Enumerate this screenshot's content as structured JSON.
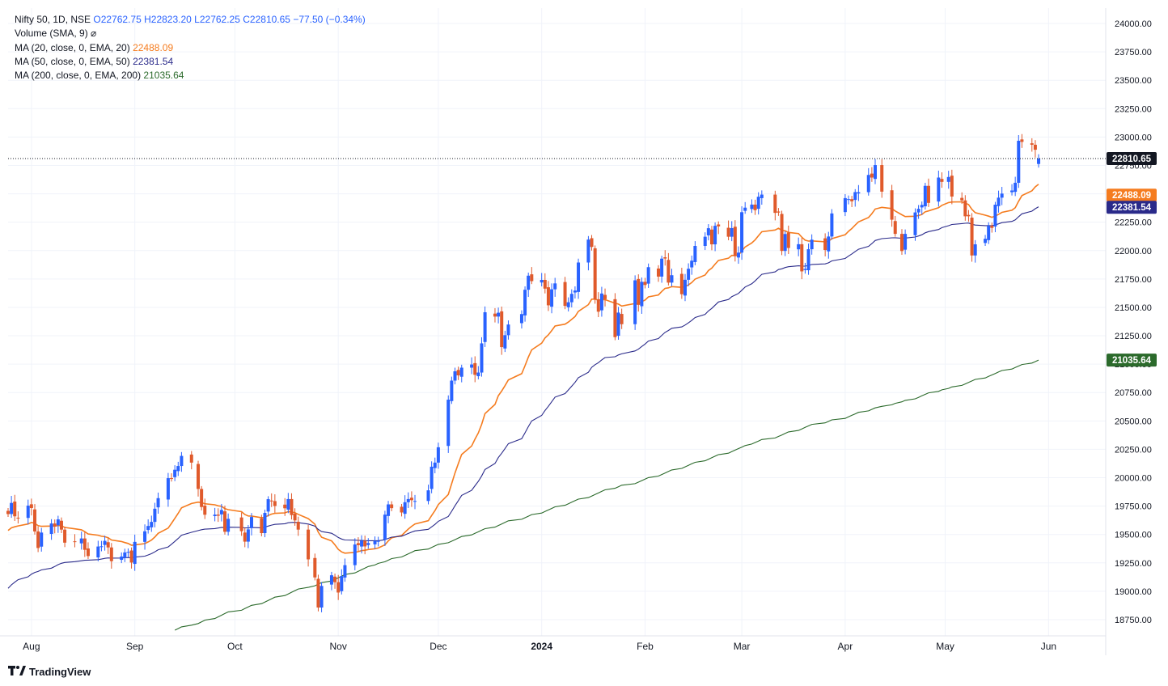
{
  "header": {
    "symbol_line": "Nifty 50, 1D, NSE",
    "open": "O22762.75",
    "high": "H22823.20",
    "low": "L22762.25",
    "close": "C22810.65",
    "change": "−77.50 (−0.34%)",
    "volume_label": "Volume (SMA, 9)",
    "volume_hidden_icon": "⌀",
    "ma20_label": "MA (20, close, 0, EMA, 20)",
    "ma20_value": "22488.09",
    "ma50_label": "MA (50, close, 0, EMA, 50)",
    "ma50_value": "22381.54",
    "ma200_label": "MA (200, close, 0, EMA, 200)",
    "ma200_value": "21035.64"
  },
  "brand": {
    "logo_icon": "tradingview-logo-icon",
    "name": "TradingView"
  },
  "colors": {
    "up": "#2962ff",
    "down": "#e05a2b",
    "ma20": "#f57c1f",
    "ma50": "#2a2a8a",
    "ma200": "#2b6a2b",
    "grid": "#f0f3fa",
    "last_price_bg": "#131722"
  },
  "chart_data": {
    "type": "candlestick",
    "ylim": [
      18650,
      24100
    ],
    "y_ticks": [
      "24000.00",
      "23750.00",
      "23500.00",
      "23250.00",
      "23000.00",
      "22750.00",
      "22500.00",
      "22250.00",
      "22000.00",
      "21750.00",
      "21500.00",
      "21250.00",
      "21000.00",
      "20750.00",
      "20500.00",
      "20250.00",
      "20000.00",
      "19750.00",
      "19500.00",
      "19250.00",
      "19000.00",
      "18750.00"
    ],
    "x_ticks": [
      {
        "label": "Aug",
        "date": "2023-08-01",
        "bold": false
      },
      {
        "label": "Sep",
        "date": "2023-09-01",
        "bold": false
      },
      {
        "label": "Oct",
        "date": "2023-10-01",
        "bold": false
      },
      {
        "label": "Nov",
        "date": "2023-11-01",
        "bold": false
      },
      {
        "label": "Dec",
        "date": "2023-12-01",
        "bold": false
      },
      {
        "label": "2024",
        "date": "2024-01-01",
        "bold": true
      },
      {
        "label": "Feb",
        "date": "2024-02-01",
        "bold": false
      },
      {
        "label": "Mar",
        "date": "2024-03-01",
        "bold": false
      },
      {
        "label": "Apr",
        "date": "2024-04-01",
        "bold": false
      },
      {
        "label": "May",
        "date": "2024-05-01",
        "bold": false
      },
      {
        "label": "Jun",
        "date": "2024-06-01",
        "bold": false
      }
    ],
    "x_range": [
      "2023-07-25",
      "2024-06-14"
    ],
    "last_price": 22810.65,
    "price_labels": [
      {
        "label": "22810.65",
        "value": 22810.65,
        "color": "#131722"
      },
      {
        "label": "22488.09",
        "value": 22488.09,
        "color": "#f57c1f"
      },
      {
        "label": "22381.54",
        "value": 22381.54,
        "color": "#2a2a8a"
      },
      {
        "label": "21035.64",
        "value": 21035.64,
        "color": "#2b6a2b"
      }
    ],
    "closes": [
      [
        "2023-07-25",
        19680
      ],
      [
        "2023-07-26",
        19778
      ],
      [
        "2023-07-27",
        19660
      ],
      [
        "2023-07-28",
        19646
      ],
      [
        "2023-07-31",
        19754
      ],
      [
        "2023-08-01",
        19733
      ],
      [
        "2023-08-02",
        19527
      ],
      [
        "2023-08-03",
        19381
      ],
      [
        "2023-08-04",
        19517
      ],
      [
        "2023-08-07",
        19597
      ],
      [
        "2023-08-08",
        19570
      ],
      [
        "2023-08-09",
        19633
      ],
      [
        "2023-08-10",
        19543
      ],
      [
        "2023-08-11",
        19428
      ],
      [
        "2023-08-14",
        19434
      ],
      [
        "2023-08-16",
        19465
      ],
      [
        "2023-08-17",
        19365
      ],
      [
        "2023-08-18",
        19310
      ],
      [
        "2023-08-21",
        19394
      ],
      [
        "2023-08-22",
        19396
      ],
      [
        "2023-08-23",
        19444
      ],
      [
        "2023-08-24",
        19386
      ],
      [
        "2023-08-25",
        19265
      ],
      [
        "2023-08-28",
        19306
      ],
      [
        "2023-08-29",
        19342
      ],
      [
        "2023-08-30",
        19347
      ],
      [
        "2023-08-31",
        19253
      ],
      [
        "2023-09-01",
        19435
      ],
      [
        "2023-09-04",
        19528
      ],
      [
        "2023-09-05",
        19575
      ],
      [
        "2023-09-06",
        19611
      ],
      [
        "2023-09-07",
        19727
      ],
      [
        "2023-09-08",
        19820
      ],
      [
        "2023-09-11",
        19996
      ],
      [
        "2023-09-12",
        19993
      ],
      [
        "2023-09-13",
        20070
      ],
      [
        "2023-09-14",
        20103
      ],
      [
        "2023-09-15",
        20192
      ],
      [
        "2023-09-18",
        20133
      ],
      [
        "2023-09-20",
        19901
      ],
      [
        "2023-09-21",
        19742
      ],
      [
        "2023-09-22",
        19674
      ],
      [
        "2023-09-25",
        19675
      ],
      [
        "2023-09-26",
        19665
      ],
      [
        "2023-09-27",
        19716
      ],
      [
        "2023-09-28",
        19524
      ],
      [
        "2023-09-29",
        19638
      ],
      [
        "2023-10-03",
        19529
      ],
      [
        "2023-10-04",
        19437
      ],
      [
        "2023-10-05",
        19545
      ],
      [
        "2023-10-06",
        19654
      ],
      [
        "2023-10-09",
        19512
      ],
      [
        "2023-10-10",
        19690
      ],
      [
        "2023-10-11",
        19811
      ],
      [
        "2023-10-12",
        19794
      ],
      [
        "2023-10-13",
        19751
      ],
      [
        "2023-10-16",
        19731
      ],
      [
        "2023-10-17",
        19812
      ],
      [
        "2023-10-18",
        19671
      ],
      [
        "2023-10-19",
        19624
      ],
      [
        "2023-10-20",
        19543
      ],
      [
        "2023-10-23",
        19281
      ],
      [
        "2023-10-25",
        19122
      ],
      [
        "2023-10-26",
        18857
      ],
      [
        "2023-10-27",
        19047
      ],
      [
        "2023-10-30",
        19141
      ],
      [
        "2023-10-31",
        19080
      ],
      [
        "2023-11-01",
        18989
      ],
      [
        "2023-11-02",
        19133
      ],
      [
        "2023-11-03",
        19230
      ],
      [
        "2023-11-06",
        19412
      ],
      [
        "2023-11-07",
        19406
      ],
      [
        "2023-11-08",
        19444
      ],
      [
        "2023-11-09",
        19395
      ],
      [
        "2023-11-10",
        19425
      ],
      [
        "2023-11-12",
        19443
      ],
      [
        "2023-11-13",
        19443
      ],
      [
        "2023-11-15",
        19675
      ],
      [
        "2023-11-16",
        19765
      ],
      [
        "2023-11-17",
        19732
      ],
      [
        "2023-11-20",
        19694
      ],
      [
        "2023-11-21",
        19784
      ],
      [
        "2023-11-22",
        19812
      ],
      [
        "2023-11-23",
        19802
      ],
      [
        "2023-11-24",
        19795
      ],
      [
        "2023-11-28",
        19889
      ],
      [
        "2023-11-29",
        20097
      ],
      [
        "2023-11-30",
        20133
      ],
      [
        "2023-12-01",
        20268
      ],
      [
        "2023-12-04",
        20687
      ],
      [
        "2023-12-05",
        20855
      ],
      [
        "2023-12-06",
        20937
      ],
      [
        "2023-12-07",
        20901
      ],
      [
        "2023-12-08",
        20969
      ],
      [
        "2023-12-11",
        20997
      ],
      [
        "2023-12-12",
        20906
      ],
      [
        "2023-12-13",
        20926
      ],
      [
        "2023-12-14",
        21183
      ],
      [
        "2023-12-15",
        21457
      ],
      [
        "2023-12-18",
        21419
      ],
      [
        "2023-12-19",
        21453
      ],
      [
        "2023-12-20",
        21150
      ],
      [
        "2023-12-21",
        21255
      ],
      [
        "2023-12-22",
        21349
      ],
      [
        "2023-12-26",
        21441
      ],
      [
        "2023-12-27",
        21655
      ],
      [
        "2023-12-28",
        21779
      ],
      [
        "2023-12-29",
        21731
      ],
      [
        "2024-01-01",
        21742
      ],
      [
        "2024-01-02",
        21665
      ],
      [
        "2024-01-03",
        21518
      ],
      [
        "2024-01-04",
        21659
      ],
      [
        "2024-01-05",
        21711
      ],
      [
        "2024-01-08",
        21513
      ],
      [
        "2024-01-09",
        21545
      ],
      [
        "2024-01-10",
        21619
      ],
      [
        "2024-01-11",
        21648
      ],
      [
        "2024-01-12",
        21895
      ],
      [
        "2024-01-15",
        22097
      ],
      [
        "2024-01-16",
        22032
      ],
      [
        "2024-01-17",
        21572
      ],
      [
        "2024-01-18",
        21462
      ],
      [
        "2024-01-19",
        21622
      ],
      [
        "2024-01-20",
        21572
      ],
      [
        "2024-01-23",
        21238
      ],
      [
        "2024-01-24",
        21454
      ],
      [
        "2024-01-25",
        21352
      ],
      [
        "2024-01-29",
        21738
      ],
      [
        "2024-01-30",
        21522
      ],
      [
        "2024-01-31",
        21725
      ],
      [
        "2024-02-01",
        21697
      ],
      [
        "2024-02-02",
        21854
      ],
      [
        "2024-02-05",
        21771
      ],
      [
        "2024-02-06",
        21929
      ],
      [
        "2024-02-07",
        21930
      ],
      [
        "2024-02-08",
        21718
      ],
      [
        "2024-02-09",
        21783
      ],
      [
        "2024-02-12",
        21616
      ],
      [
        "2024-02-13",
        21743
      ],
      [
        "2024-02-14",
        21840
      ],
      [
        "2024-02-15",
        21911
      ],
      [
        "2024-02-16",
        22041
      ],
      [
        "2024-02-19",
        22122
      ],
      [
        "2024-02-20",
        22197
      ],
      [
        "2024-02-21",
        22055
      ],
      [
        "2024-02-22",
        22218
      ],
      [
        "2024-02-23",
        22213
      ],
      [
        "2024-02-26",
        22122
      ],
      [
        "2024-02-27",
        22198
      ],
      [
        "2024-02-28",
        21951
      ],
      [
        "2024-02-29",
        21982
      ],
      [
        "2024-03-01",
        22338
      ],
      [
        "2024-03-02",
        22378
      ],
      [
        "2024-03-04",
        22405
      ],
      [
        "2024-03-05",
        22356
      ],
      [
        "2024-03-06",
        22474
      ],
      [
        "2024-03-07",
        22493
      ],
      [
        "2024-03-11",
        22332
      ],
      [
        "2024-03-12",
        22335
      ],
      [
        "2024-03-13",
        21997
      ],
      [
        "2024-03-14",
        22146
      ],
      [
        "2024-03-15",
        22023
      ],
      [
        "2024-03-18",
        22056
      ],
      [
        "2024-03-19",
        21817
      ],
      [
        "2024-03-20",
        21839
      ],
      [
        "2024-03-21",
        22012
      ],
      [
        "2024-03-22",
        22096
      ],
      [
        "2024-03-26",
        22005
      ],
      [
        "2024-03-27",
        22124
      ],
      [
        "2024-03-28",
        22327
      ],
      [
        "2024-04-01",
        22462
      ],
      [
        "2024-04-02",
        22453
      ],
      [
        "2024-04-03",
        22434
      ],
      [
        "2024-04-04",
        22515
      ],
      [
        "2024-04-05",
        22514
      ],
      [
        "2024-04-08",
        22666
      ],
      [
        "2024-04-09",
        22643
      ],
      [
        "2024-04-10",
        22753
      ],
      [
        "2024-04-12",
        22519
      ],
      [
        "2024-04-15",
        22272
      ],
      [
        "2024-04-16",
        22147
      ],
      [
        "2024-04-18",
        21996
      ],
      [
        "2024-04-19",
        22147
      ],
      [
        "2024-04-22",
        22336
      ],
      [
        "2024-04-23",
        22368
      ],
      [
        "2024-04-24",
        22402
      ],
      [
        "2024-04-25",
        22570
      ],
      [
        "2024-04-26",
        22420
      ],
      [
        "2024-04-29",
        22643
      ],
      [
        "2024-04-30",
        22605
      ],
      [
        "2024-05-02",
        22648
      ],
      [
        "2024-05-03",
        22476
      ],
      [
        "2024-05-06",
        22442
      ],
      [
        "2024-05-07",
        22302
      ],
      [
        "2024-05-08",
        22302
      ],
      [
        "2024-05-09",
        21957
      ],
      [
        "2024-05-10",
        22055
      ],
      [
        "2024-05-13",
        22104
      ],
      [
        "2024-05-14",
        22218
      ],
      [
        "2024-05-15",
        22200
      ],
      [
        "2024-05-16",
        22404
      ],
      [
        "2024-05-17",
        22466
      ],
      [
        "2024-05-18",
        22502
      ],
      [
        "2024-05-21",
        22529
      ],
      [
        "2024-05-22",
        22597
      ],
      [
        "2024-05-23",
        22967
      ],
      [
        "2024-05-24",
        22957
      ],
      [
        "2024-05-27",
        22932
      ],
      [
        "2024-05-28",
        22888
      ],
      [
        "2024-05-29",
        22810.65
      ]
    ]
  }
}
